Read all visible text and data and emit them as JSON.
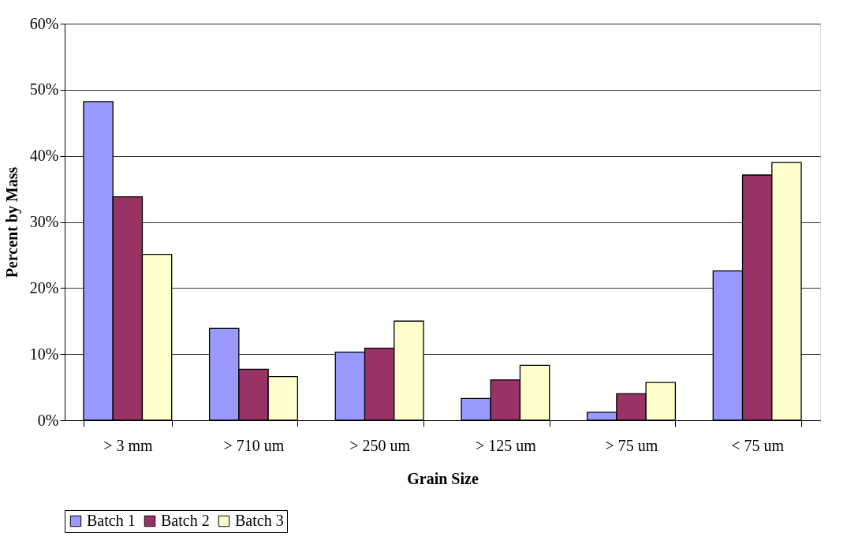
{
  "chart_data": {
    "type": "bar",
    "xlabel": "Grain Size",
    "ylabel": "Percent by Mass",
    "categories": [
      "> 3 mm",
      "> 710 um",
      "> 250 um",
      "> 125 um",
      "> 75 um",
      "< 75 um"
    ],
    "series": [
      {
        "name": "Batch 1",
        "color": "#9999ff",
        "values": [
          48.2,
          13.9,
          10.3,
          3.3,
          1.2,
          22.6
        ]
      },
      {
        "name": "Batch 2",
        "color": "#993366",
        "values": [
          33.8,
          7.7,
          10.9,
          6.1,
          4.0,
          37.1
        ]
      },
      {
        "name": "Batch 3",
        "color": "#ffffcc",
        "values": [
          25.1,
          6.6,
          15.0,
          8.3,
          5.7,
          39.0
        ]
      }
    ],
    "ylim": [
      0,
      60
    ],
    "yticks": [
      {
        "value": 0,
        "label": "0%"
      },
      {
        "value": 10,
        "label": "10%"
      },
      {
        "value": 20,
        "label": "20%"
      },
      {
        "value": 30,
        "label": "30%"
      },
      {
        "value": 40,
        "label": "40%"
      },
      {
        "value": 50,
        "label": "50%"
      },
      {
        "value": 60,
        "label": "60%"
      }
    ],
    "grid": "y",
    "legend": "bottom"
  }
}
